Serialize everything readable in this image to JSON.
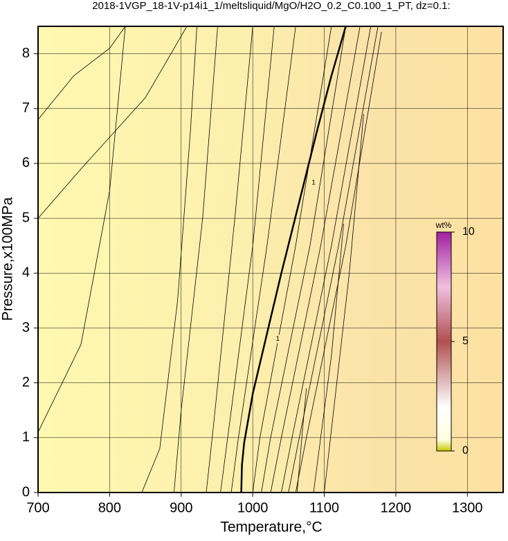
{
  "chart_data": {
    "type": "contour",
    "title": "2018-1VGP_18-1V-p14i1_1/meltsliquid/MgO/H2O_0.2_C0.100_1_PT, dz=0.1:",
    "x_label": "Temperature,°C",
    "y_label": "Pressure,x100MPa",
    "xlim": [
      700,
      1350
    ],
    "ylim": [
      0,
      8.5
    ],
    "xticks": [
      700,
      800,
      900,
      1000,
      1100,
      1200,
      1300
    ],
    "yticks": [
      0,
      1,
      2,
      3,
      4,
      5,
      6,
      7,
      8
    ],
    "grid": true,
    "series": [
      {
        "color": "#000000",
        "x": [
          700,
          760,
          800,
          822
        ],
        "y": [
          1.1,
          2.7,
          5.5,
          8.5
        ]
      },
      {
        "color": "#000000",
        "x": [
          700,
          760,
          850,
          908
        ],
        "y": [
          5.0,
          5.9,
          7.2,
          8.5
        ]
      },
      {
        "color": "#000000",
        "x": [
          700,
          750,
          800,
          822
        ],
        "y": [
          6.8,
          7.6,
          8.1,
          8.5
        ]
      },
      {
        "color": "#000000",
        "x": [
          845,
          870,
          895,
          913,
          922
        ],
        "y": [
          0,
          0.8,
          3.5,
          6.6,
          8.5
        ]
      },
      {
        "color": "#000000",
        "x": [
          890,
          900,
          930,
          951
        ],
        "y": [
          0,
          1.5,
          5.0,
          8.5
        ]
      },
      {
        "color": "#000000",
        "x": [
          935,
          945,
          975,
          1000
        ],
        "y": [
          0,
          1.2,
          5.0,
          8.5
        ]
      },
      {
        "color": "#000000",
        "x": [
          955,
          965,
          1000,
          1030
        ],
        "y": [
          0,
          1,
          4.5,
          8.5
        ]
      },
      {
        "color": "#000000",
        "x": [
          970,
          980,
          1020,
          1060
        ],
        "y": [
          0,
          1,
          4.5,
          8.5
        ]
      },
      {
        "color": "#000000",
        "bold": true,
        "x": [
          984,
          985,
          988,
          1000,
          1020,
          1040,
          1065,
          1090,
          1110,
          1130
        ],
        "y": [
          0,
          0.5,
          0.9,
          1.8,
          2.9,
          4.0,
          5.3,
          6.6,
          7.6,
          8.5
        ]
      },
      {
        "color": "#000000",
        "x": [
          1000,
          1010,
          1060,
          1110
        ],
        "y": [
          0,
          1,
          4.5,
          8.5
        ]
      },
      {
        "color": "#000000",
        "x": [
          1012,
          1025,
          1080,
          1130
        ],
        "y": [
          0,
          1,
          4.5,
          8.5
        ]
      },
      {
        "color": "#000000",
        "x": [
          1025,
          1040,
          1095,
          1150
        ],
        "y": [
          0,
          1,
          4.5,
          8.5
        ]
      },
      {
        "color": "#000000",
        "x": [
          1040,
          1055,
          1110,
          1165
        ],
        "y": [
          0,
          1,
          4.5,
          8.5
        ]
      },
      {
        "color": "#000000",
        "x": [
          1050,
          1065,
          1120,
          1175
        ],
        "y": [
          0,
          1,
          4.5,
          8.5
        ]
      },
      {
        "color": "#000000",
        "x": [
          1060,
          1075,
          1130,
          1180
        ],
        "y": [
          0,
          1,
          4.5,
          8.4
        ]
      },
      {
        "color": "#000000",
        "x": [
          1062,
          1070,
          1075
        ],
        "y": [
          0,
          1.2,
          1.9
        ]
      },
      {
        "color": "#000000",
        "x": [
          1085,
          1110,
          1127
        ],
        "y": [
          0,
          2.5,
          4.9
        ]
      },
      {
        "color": "#000000",
        "x": [
          1100,
          1135,
          1155
        ],
        "y": [
          0,
          4.0,
          6.9
        ]
      }
    ],
    "contour_labels": [
      {
        "text": "1",
        "x": 1035,
        "y": 2.8
      },
      {
        "text": "1",
        "x": 1085,
        "y": 5.65
      }
    ],
    "colorbar": {
      "label": "wt%",
      "lim": [
        0,
        10
      ],
      "ticks": [
        0,
        5,
        10
      ]
    }
  }
}
